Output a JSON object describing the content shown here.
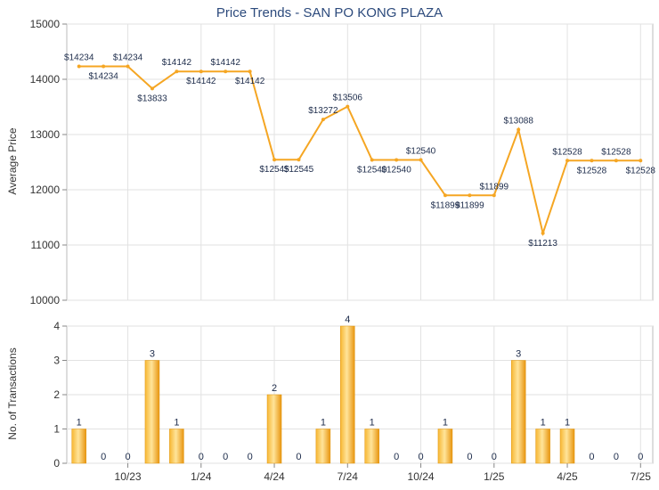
{
  "chart_data": [
    {
      "type": "line",
      "title": "Price Trends - SAN PO KONG PLAZA",
      "ylabel": "Average Price",
      "ylim": [
        10000,
        15000
      ],
      "yticks": [
        10000,
        11000,
        12000,
        13000,
        14000,
        15000
      ],
      "grid": true,
      "color": "#f5a623",
      "points": [
        {
          "x": 0,
          "y": 14234,
          "label": "$14234"
        },
        {
          "x": 1,
          "y": 14234,
          "label": "$14234"
        },
        {
          "x": 2,
          "y": 14234,
          "label": "$14234"
        },
        {
          "x": 3,
          "y": 13833,
          "label": "$13833"
        },
        {
          "x": 4,
          "y": 14142,
          "label": "$14142"
        },
        {
          "x": 5,
          "y": 14142,
          "label": "$14142"
        },
        {
          "x": 6,
          "y": 14142,
          "label": "$14142"
        },
        {
          "x": 7,
          "y": 14142,
          "label": "$14142"
        },
        {
          "x": 8,
          "y": 12545,
          "label": "$12545"
        },
        {
          "x": 9,
          "y": 12545,
          "label": "$12545"
        },
        {
          "x": 10,
          "y": 13272,
          "label": "$13272"
        },
        {
          "x": 11,
          "y": 13506,
          "label": "$13506"
        },
        {
          "x": 12,
          "y": 12540,
          "label": "$12540"
        },
        {
          "x": 13,
          "y": 12540,
          "label": "$12540"
        },
        {
          "x": 14,
          "y": 12540,
          "label": "$12540"
        },
        {
          "x": 15,
          "y": 11899,
          "label": "$11899"
        },
        {
          "x": 16,
          "y": 11899,
          "label": "$11899"
        },
        {
          "x": 17,
          "y": 11899,
          "label": "$11899"
        },
        {
          "x": 18,
          "y": 13088,
          "label": "$13088"
        },
        {
          "x": 19,
          "y": 11213,
          "label": "$11213"
        },
        {
          "x": 20,
          "y": 12528,
          "label": "$12528"
        },
        {
          "x": 21,
          "y": 12528,
          "label": "$12528"
        },
        {
          "x": 22,
          "y": 12528,
          "label": "$12528"
        },
        {
          "x": 23,
          "y": 12528,
          "label": "$12528"
        }
      ]
    },
    {
      "type": "bar",
      "ylabel": "No. of Transactions",
      "ylim": [
        0,
        4
      ],
      "yticks": [
        0,
        1,
        2,
        3,
        4
      ],
      "values": [
        1,
        0,
        0,
        3,
        1,
        0,
        0,
        0,
        2,
        0,
        1,
        4,
        1,
        0,
        0,
        1,
        0,
        0,
        3,
        1,
        1,
        0,
        0,
        0
      ],
      "xticks": [
        {
          "index": 2,
          "label": "10/23"
        },
        {
          "index": 5,
          "label": "1/24"
        },
        {
          "index": 8,
          "label": "4/24"
        },
        {
          "index": 11,
          "label": "7/24"
        },
        {
          "index": 14,
          "label": "10/24"
        },
        {
          "index": 17,
          "label": "1/25"
        },
        {
          "index": 20,
          "label": "4/25"
        },
        {
          "index": 23,
          "label": "7/25"
        }
      ],
      "color": "#f5a623"
    }
  ]
}
